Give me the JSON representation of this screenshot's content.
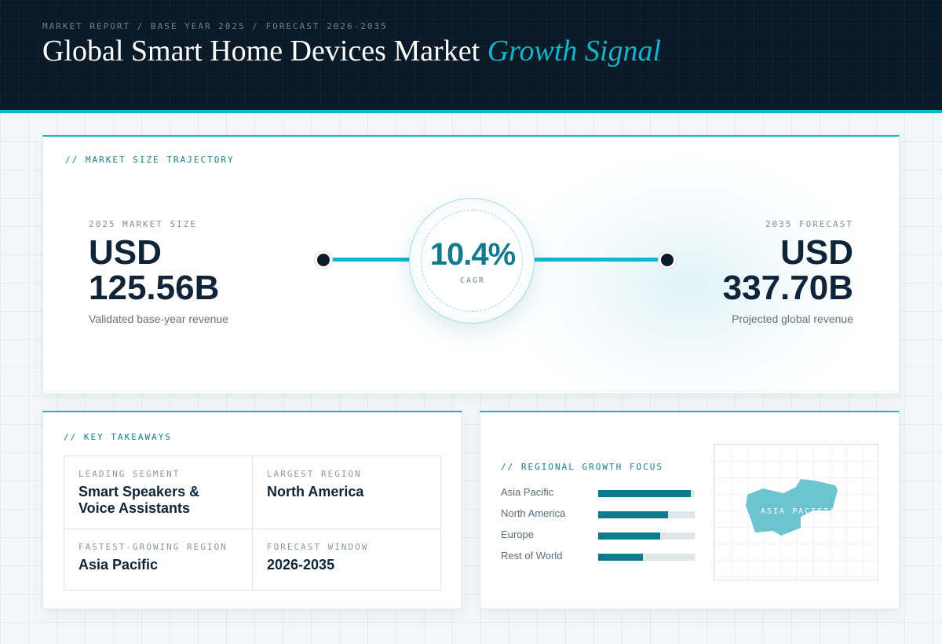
{
  "header": {
    "breadcrumb": "MARKET REPORT / BASE YEAR 2025 / FORECAST 2026-2035",
    "title_main": "Global Smart Home Devices Market",
    "title_accent": "Growth Signal"
  },
  "trajectory": {
    "section_label": "// MARKET SIZE TRAJECTORY",
    "start": {
      "caption": "2025 MARKET SIZE",
      "value_line1": "USD",
      "value_line2": "125.56B",
      "description": "Validated base-year revenue"
    },
    "end": {
      "caption": "2035 FORECAST",
      "value_line1": "USD",
      "value_line2": "337.70B",
      "description": "Projected global revenue"
    },
    "cagr": {
      "value": "10.4%",
      "label": "CAGR"
    }
  },
  "takeaways": {
    "section_label": "// KEY TAKEAWAYS",
    "items": [
      {
        "caption": "LEADING SEGMENT",
        "value": "Smart Speakers & Voice Assistants"
      },
      {
        "caption": "LARGEST REGION",
        "value": "North America"
      },
      {
        "caption": "FASTEST-GROWING REGION",
        "value": "Asia Pacific"
      },
      {
        "caption": "FORECAST WINDOW",
        "value": "2026-2035"
      }
    ]
  },
  "regional": {
    "section_label": "// REGIONAL GROWTH FOCUS",
    "bars": [
      {
        "label": "Asia Pacific",
        "fraction": 0.96
      },
      {
        "label": "North America",
        "fraction": 0.72
      },
      {
        "label": "Europe",
        "fraction": 0.64
      },
      {
        "label": "Rest of World",
        "fraction": 0.46
      }
    ],
    "map_label": "ASIA PACIFIC"
  },
  "colors": {
    "accent": "#12b4cf",
    "accent_dark": "#0f7a8b",
    "navy": "#0b1a27",
    "map_fill": "#6cc4d0"
  }
}
